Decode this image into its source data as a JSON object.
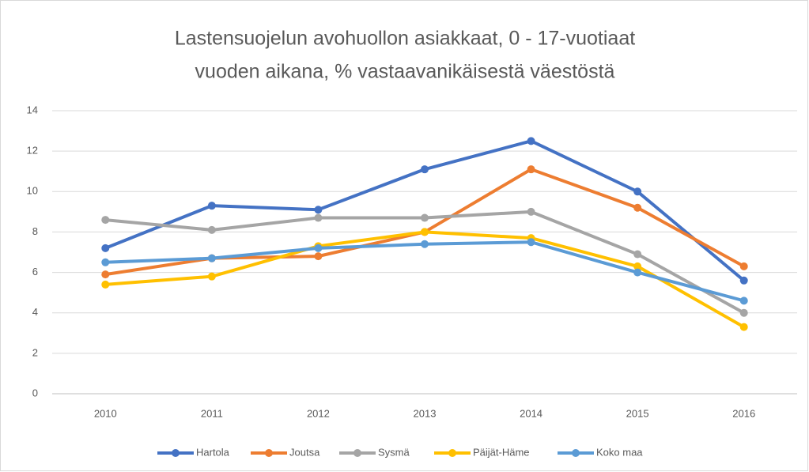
{
  "chart_data": {
    "type": "line",
    "title": [
      "Lastensuojelun avohuollon asiakkaat, 0 - 17-vuotiaat",
      "vuoden aikana, % vastaavanikäisestä väestöstä"
    ],
    "categories": [
      "2010",
      "2011",
      "2012",
      "2013",
      "2014",
      "2015",
      "2016"
    ],
    "series": [
      {
        "name": "Hartola",
        "color": "#4472c4",
        "values": [
          7.2,
          9.3,
          9.1,
          11.1,
          12.5,
          10.0,
          5.6
        ]
      },
      {
        "name": "Joutsa",
        "color": "#ed7d31",
        "values": [
          5.9,
          6.7,
          6.8,
          8.0,
          11.1,
          9.2,
          6.3
        ]
      },
      {
        "name": "Sysmä",
        "color": "#a5a5a5",
        "values": [
          8.6,
          8.1,
          8.7,
          8.7,
          9.0,
          6.9,
          4.0
        ]
      },
      {
        "name": "Päijät-Häme",
        "color": "#ffc000",
        "values": [
          5.4,
          5.8,
          7.3,
          8.0,
          7.7,
          6.3,
          3.3
        ]
      },
      {
        "name": "Koko maa",
        "color": "#5b9bd5",
        "values": [
          6.5,
          6.7,
          7.2,
          7.4,
          7.5,
          6.0,
          4.6
        ]
      }
    ],
    "ylim": [
      0,
      14
    ],
    "yticks": [
      0,
      2,
      4,
      6,
      8,
      10,
      12,
      14
    ],
    "grid": true,
    "legend": "bottom"
  }
}
